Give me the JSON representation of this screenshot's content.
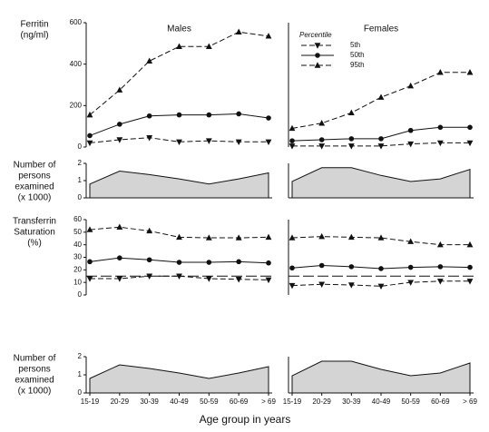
{
  "categories": [
    "15-19",
    "20-29",
    "30-39",
    "40-49",
    "50-59",
    "60-69",
    "> 69"
  ],
  "xlabel": "Age group in years",
  "chart_data": [
    {
      "type": "line",
      "title": "Males",
      "ylabel": [
        "Ferritin",
        "(ng/ml)"
      ],
      "ylim": [
        0,
        600
      ],
      "yticks": [
        0,
        200,
        400,
        600
      ],
      "series": [
        {
          "marker": "triangle-down",
          "style": "dashed",
          "color": "#111",
          "values": [
            20,
            35,
            45,
            25,
            30,
            25,
            25
          ]
        },
        {
          "marker": "circle",
          "style": "solid",
          "color": "#111",
          "values": [
            55,
            110,
            150,
            155,
            155,
            160,
            140
          ]
        },
        {
          "marker": "triangle-up",
          "style": "dashed",
          "color": "#111",
          "values": [
            155,
            275,
            415,
            485,
            485,
            555,
            535
          ]
        }
      ]
    },
    {
      "type": "line",
      "title": "Females",
      "ylim": [
        0,
        600
      ],
      "legend_title": "Percentile",
      "series": [
        {
          "name": "5th",
          "marker": "triangle-down",
          "style": "dashed",
          "color": "#111",
          "values": [
            5,
            5,
            5,
            5,
            15,
            20,
            20
          ]
        },
        {
          "name": "50th",
          "marker": "circle",
          "style": "solid",
          "color": "#111",
          "values": [
            30,
            35,
            40,
            40,
            80,
            95,
            95
          ]
        },
        {
          "name": "95th",
          "marker": "triangle-up",
          "style": "dashed",
          "color": "#111",
          "values": [
            90,
            115,
            165,
            240,
            295,
            360,
            360
          ]
        }
      ]
    },
    {
      "type": "area",
      "ylabel": [
        "Number of",
        "persons",
        "examined",
        "(x 1000)"
      ],
      "ylim": [
        0,
        2
      ],
      "yticks": [
        0,
        1,
        2
      ],
      "color": "#d4d4d4",
      "values": [
        0.8,
        1.55,
        1.35,
        1.1,
        0.8,
        1.1,
        1.45
      ]
    },
    {
      "type": "area",
      "ylim": [
        0,
        2
      ],
      "color": "#d4d4d4",
      "values": [
        0.95,
        1.75,
        1.75,
        1.3,
        0.95,
        1.1,
        1.65
      ]
    },
    {
      "type": "line",
      "ylabel": [
        "Transferrin",
        "Saturation",
        "(%)"
      ],
      "ylim": [
        0,
        60
      ],
      "yticks": [
        0,
        10,
        20,
        30,
        40,
        50,
        60
      ],
      "hline": 15,
      "series": [
        {
          "marker": "triangle-down",
          "style": "dashed",
          "color": "#111",
          "values": [
            13,
            13,
            15,
            15,
            13,
            12.5,
            12
          ]
        },
        {
          "marker": "circle",
          "style": "solid",
          "color": "#111",
          "values": [
            26.5,
            29.5,
            28,
            26,
            26,
            26.5,
            25.5
          ]
        },
        {
          "marker": "triangle-up",
          "style": "dashed",
          "color": "#111",
          "values": [
            52,
            54,
            51,
            46,
            45.5,
            45.5,
            46
          ]
        }
      ]
    },
    {
      "type": "line",
      "ylim": [
        0,
        60
      ],
      "hline": 15,
      "series": [
        {
          "marker": "triangle-down",
          "style": "dashed",
          "color": "#111",
          "values": [
            7.5,
            8.5,
            8,
            7,
            10,
            11,
            11
          ]
        },
        {
          "marker": "circle",
          "style": "solid",
          "color": "#111",
          "values": [
            21.5,
            23.5,
            22.5,
            21,
            22,
            22.5,
            22
          ]
        },
        {
          "marker": "triangle-up",
          "style": "dashed",
          "color": "#111",
          "values": [
            45.5,
            46.5,
            46,
            45.5,
            42.5,
            40,
            40
          ]
        }
      ]
    },
    {
      "type": "area",
      "ylabel": [
        "Number of",
        "persons",
        "examined",
        "(x 1000)"
      ],
      "ylim": [
        0,
        2
      ],
      "yticks": [
        0,
        1,
        2
      ],
      "color": "#d4d4d4",
      "xlabels": true,
      "values": [
        0.8,
        1.55,
        1.35,
        1.1,
        0.8,
        1.1,
        1.45
      ]
    },
    {
      "type": "area",
      "ylim": [
        0,
        2
      ],
      "color": "#d4d4d4",
      "xlabels": true,
      "values": [
        0.95,
        1.75,
        1.75,
        1.3,
        0.95,
        1.1,
        1.65
      ]
    }
  ]
}
